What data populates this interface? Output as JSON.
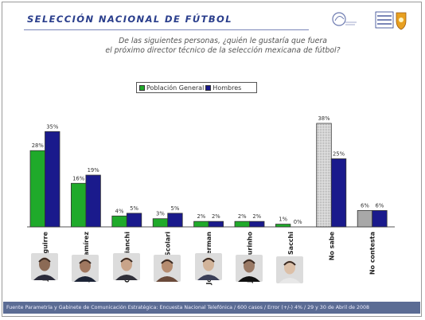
{
  "header": {
    "title": "SELECCIÓN NACIONAL DE FÚTBOL"
  },
  "question": {
    "line1": "De las siguientes personas, ¿quién le gustaría que fuera",
    "line2": "el próximo director técnico de la selección mexicana de fútbol?"
  },
  "colors": {
    "poblacion": "#1faa2a",
    "hombres": "#1a1a8c",
    "nosabe": "#c8c8c8",
    "nocontesta": "#a8a8a8",
    "title": "#2a3e8c",
    "footer_bg": "#5b6c94"
  },
  "chart_data": {
    "type": "bar",
    "categories": [
      "Javier Aguirre",
      "Jesús Ramírez",
      "Carlos Bianchi",
      "Felipe Scolari",
      "José Pekerman",
      "José Mourinho",
      "Arrigo Sacchi",
      "No sabe",
      "No contesta"
    ],
    "series": [
      {
        "name": "Población General",
        "values": [
          28,
          16,
          4,
          3,
          2,
          2,
          1,
          38,
          6
        ],
        "labels": [
          "28%",
          "16%",
          "4%",
          "3%",
          "2%",
          "2%",
          "1%",
          "38%",
          "6%"
        ]
      },
      {
        "name": "Hombres",
        "values": [
          35,
          19,
          5,
          5,
          2,
          2,
          0,
          25,
          6
        ],
        "labels": [
          "35%",
          "19%",
          "5%",
          "5%",
          "2%",
          "2%",
          "0%",
          "25%",
          "6%"
        ]
      }
    ],
    "ylim": [
      0,
      40
    ],
    "grid": false,
    "legend_position": "top-center",
    "photos": [
      "photo-javier-aguirre",
      "photo-jesus-ramirez",
      "photo-carlos-bianchi",
      "photo-felipe-scolari",
      "photo-jose-pekerman",
      "photo-jose-mourinho",
      "photo-arrigo-sacchi"
    ]
  },
  "footer": {
    "text": "Fuente Parametría y Gabinete de Comunicación Estratégica: Encuesta Nacional Telefónica / 600 casos / Error (+/-) 4% / 29 y 30 de Abril de 2008"
  }
}
